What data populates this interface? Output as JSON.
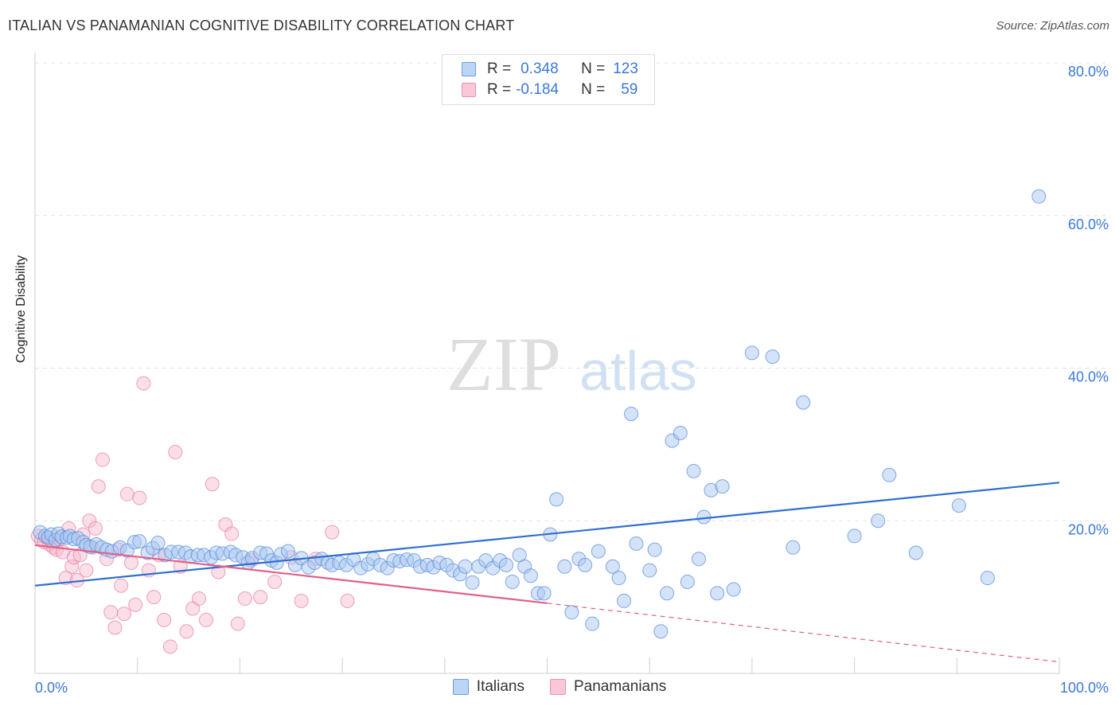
{
  "header": {
    "title": "ITALIAN VS PANAMANIAN COGNITIVE DISABILITY CORRELATION CHART",
    "source": "Source: ZipAtlas.com"
  },
  "watermark": {
    "zip": "ZIP",
    "atlas": "atlas"
  },
  "legend": {
    "rows": [
      {
        "r_key": "R =",
        "r_val": "0.348",
        "n_key": "N =",
        "n_val": "123"
      },
      {
        "r_key": "R =",
        "r_val": "-0.184",
        "n_key": "N =",
        "n_val": "59"
      }
    ]
  },
  "colors": {
    "italians_fill": "#a9c8f2",
    "italians_stroke": "#5a8fd8",
    "italians_line": "#2f6fd0",
    "panamanians_fill": "#f7b8cb",
    "panamanians_stroke": "#e77a9d",
    "panamanians_line": "#e0608a",
    "tick_label": "#3a78d8"
  },
  "chart_data": {
    "type": "scatter",
    "title": "ITALIAN VS PANAMANIAN COGNITIVE DISABILITY CORRELATION CHART",
    "xlabel": "",
    "ylabel": "Cognitive Disability",
    "xlim": [
      0,
      100
    ],
    "ylim": [
      0,
      80
    ],
    "x_tick_labels": [
      "0.0%",
      "100.0%"
    ],
    "y_ticks": [
      20,
      40,
      60,
      80
    ],
    "y_tick_labels": [
      "20.0%",
      "40.0%",
      "60.0%",
      "80.0%"
    ],
    "grid": true,
    "legend_position": "top-center",
    "series": [
      {
        "name": "Italians",
        "r": 0.348,
        "n": 123,
        "trend": {
          "x": [
            0,
            100
          ],
          "y": [
            11.5,
            25.0
          ]
        },
        "points": [
          [
            0.5,
            18.5
          ],
          [
            1.0,
            18.0
          ],
          [
            1.3,
            17.8
          ],
          [
            1.6,
            18.2
          ],
          [
            2.0,
            17.5
          ],
          [
            2.3,
            18.3
          ],
          [
            2.6,
            17.9
          ],
          [
            3.1,
            17.8
          ],
          [
            3.4,
            18.0
          ],
          [
            3.8,
            17.6
          ],
          [
            4.2,
            17.7
          ],
          [
            4.7,
            17.2
          ],
          [
            5.0,
            16.8
          ],
          [
            5.4,
            16.6
          ],
          [
            6.0,
            16.9
          ],
          [
            6.5,
            16.5
          ],
          [
            7.0,
            16.2
          ],
          [
            7.5,
            16.0
          ],
          [
            8.3,
            16.5
          ],
          [
            9.0,
            16.1
          ],
          [
            9.7,
            17.2
          ],
          [
            10.2,
            17.3
          ],
          [
            11.0,
            15.8
          ],
          [
            11.5,
            16.4
          ],
          [
            12.0,
            17.1
          ],
          [
            12.7,
            15.5
          ],
          [
            13.3,
            15.9
          ],
          [
            14.0,
            15.9
          ],
          [
            14.7,
            15.8
          ],
          [
            15.2,
            15.3
          ],
          [
            15.9,
            15.5
          ],
          [
            16.5,
            15.5
          ],
          [
            17.2,
            15.2
          ],
          [
            17.7,
            15.8
          ],
          [
            18.3,
            15.7
          ],
          [
            19.1,
            15.9
          ],
          [
            19.6,
            15.5
          ],
          [
            20.3,
            15.2
          ],
          [
            20.8,
            14.5
          ],
          [
            21.2,
            15.1
          ],
          [
            22.0,
            15.8
          ],
          [
            22.6,
            15.7
          ],
          [
            23.1,
            14.8
          ],
          [
            23.6,
            14.5
          ],
          [
            24.0,
            15.6
          ],
          [
            24.7,
            16.0
          ],
          [
            25.4,
            14.2
          ],
          [
            26.0,
            15.1
          ],
          [
            26.7,
            13.9
          ],
          [
            27.3,
            14.5
          ],
          [
            28.0,
            15.0
          ],
          [
            28.6,
            14.5
          ],
          [
            29.0,
            14.2
          ],
          [
            29.7,
            14.5
          ],
          [
            30.4,
            14.2
          ],
          [
            31.1,
            14.9
          ],
          [
            31.8,
            13.8
          ],
          [
            32.5,
            14.3
          ],
          [
            33.0,
            15.0
          ],
          [
            33.7,
            14.2
          ],
          [
            34.4,
            13.8
          ],
          [
            35.0,
            14.8
          ],
          [
            35.6,
            14.7
          ],
          [
            36.3,
            14.9
          ],
          [
            37.0,
            14.8
          ],
          [
            37.6,
            14.0
          ],
          [
            38.3,
            14.2
          ],
          [
            38.9,
            13.9
          ],
          [
            39.5,
            14.5
          ],
          [
            40.2,
            14.2
          ],
          [
            40.8,
            13.5
          ],
          [
            41.5,
            13.0
          ],
          [
            42.0,
            14.0
          ],
          [
            42.7,
            11.9
          ],
          [
            43.3,
            14.0
          ],
          [
            44.0,
            14.8
          ],
          [
            44.7,
            13.8
          ],
          [
            45.4,
            14.8
          ],
          [
            46.0,
            14.2
          ],
          [
            46.6,
            12.0
          ],
          [
            47.3,
            15.5
          ],
          [
            47.8,
            14.0
          ],
          [
            48.4,
            12.8
          ],
          [
            49.1,
            10.5
          ],
          [
            49.7,
            10.5
          ],
          [
            50.3,
            18.2
          ],
          [
            50.9,
            22.8
          ],
          [
            51.7,
            14.0
          ],
          [
            52.4,
            8.0
          ],
          [
            53.1,
            15.0
          ],
          [
            53.7,
            14.2
          ],
          [
            54.4,
            6.5
          ],
          [
            55.0,
            16.0
          ],
          [
            56.4,
            14.0
          ],
          [
            57.0,
            12.5
          ],
          [
            57.5,
            9.5
          ],
          [
            58.2,
            34.0
          ],
          [
            58.7,
            17.0
          ],
          [
            60.0,
            13.5
          ],
          [
            60.5,
            16.2
          ],
          [
            61.1,
            5.5
          ],
          [
            61.7,
            10.5
          ],
          [
            62.2,
            30.5
          ],
          [
            63.0,
            31.5
          ],
          [
            63.7,
            12.0
          ],
          [
            64.3,
            26.5
          ],
          [
            64.8,
            15.0
          ],
          [
            65.3,
            20.5
          ],
          [
            66.0,
            24.0
          ],
          [
            66.6,
            10.5
          ],
          [
            67.1,
            24.5
          ],
          [
            68.2,
            11.0
          ],
          [
            70.0,
            42.0
          ],
          [
            72.0,
            41.5
          ],
          [
            74.0,
            16.5
          ],
          [
            75.0,
            35.5
          ],
          [
            80.0,
            18.0
          ],
          [
            82.3,
            20.0
          ],
          [
            83.4,
            26.0
          ],
          [
            86.0,
            15.8
          ],
          [
            90.2,
            22.0
          ],
          [
            93.0,
            12.5
          ],
          [
            98.0,
            62.5
          ]
        ]
      },
      {
        "name": "Panamanians",
        "r": -0.184,
        "n": 59,
        "trend": {
          "x": [
            0,
            50
          ],
          "y": [
            16.8,
            9.2
          ]
        },
        "trend_dashed": {
          "x": [
            50,
            100
          ],
          "y": [
            9.2,
            1.5
          ]
        },
        "points": [
          [
            0.3,
            18.0
          ],
          [
            0.6,
            17.5
          ],
          [
            0.9,
            17.2
          ],
          [
            1.2,
            17.8
          ],
          [
            1.4,
            16.9
          ],
          [
            1.6,
            17.3
          ],
          [
            1.8,
            16.5
          ],
          [
            2.1,
            16.2
          ],
          [
            2.4,
            17.6
          ],
          [
            2.7,
            15.9
          ],
          [
            3.0,
            12.5
          ],
          [
            3.3,
            19.0
          ],
          [
            3.6,
            14.0
          ],
          [
            3.8,
            15.2
          ],
          [
            4.1,
            12.2
          ],
          [
            4.4,
            15.5
          ],
          [
            4.7,
            18.2
          ],
          [
            5.0,
            13.5
          ],
          [
            5.3,
            20.0
          ],
          [
            5.6,
            16.5
          ],
          [
            5.9,
            19.0
          ],
          [
            6.2,
            24.5
          ],
          [
            6.6,
            28.0
          ],
          [
            7.0,
            15.0
          ],
          [
            7.4,
            8.0
          ],
          [
            7.8,
            6.0
          ],
          [
            8.1,
            16.2
          ],
          [
            8.4,
            11.5
          ],
          [
            8.7,
            7.8
          ],
          [
            9.0,
            23.5
          ],
          [
            9.4,
            14.5
          ],
          [
            9.8,
            9.0
          ],
          [
            10.2,
            23.0
          ],
          [
            10.6,
            38.0
          ],
          [
            11.1,
            13.5
          ],
          [
            11.6,
            10.0
          ],
          [
            12.1,
            15.5
          ],
          [
            12.6,
            7.0
          ],
          [
            13.2,
            3.5
          ],
          [
            13.7,
            29.0
          ],
          [
            14.2,
            14.0
          ],
          [
            14.8,
            5.5
          ],
          [
            15.4,
            8.5
          ],
          [
            16.0,
            9.8
          ],
          [
            16.7,
            7.0
          ],
          [
            17.3,
            24.8
          ],
          [
            17.9,
            13.3
          ],
          [
            18.6,
            19.5
          ],
          [
            19.2,
            18.3
          ],
          [
            19.8,
            6.5
          ],
          [
            20.5,
            9.8
          ],
          [
            21.1,
            14.8
          ],
          [
            22.0,
            10.0
          ],
          [
            23.4,
            12.0
          ],
          [
            25.0,
            15.2
          ],
          [
            26.0,
            9.5
          ],
          [
            27.4,
            15.0
          ],
          [
            29.0,
            18.5
          ],
          [
            30.5,
            9.5
          ]
        ]
      }
    ]
  }
}
